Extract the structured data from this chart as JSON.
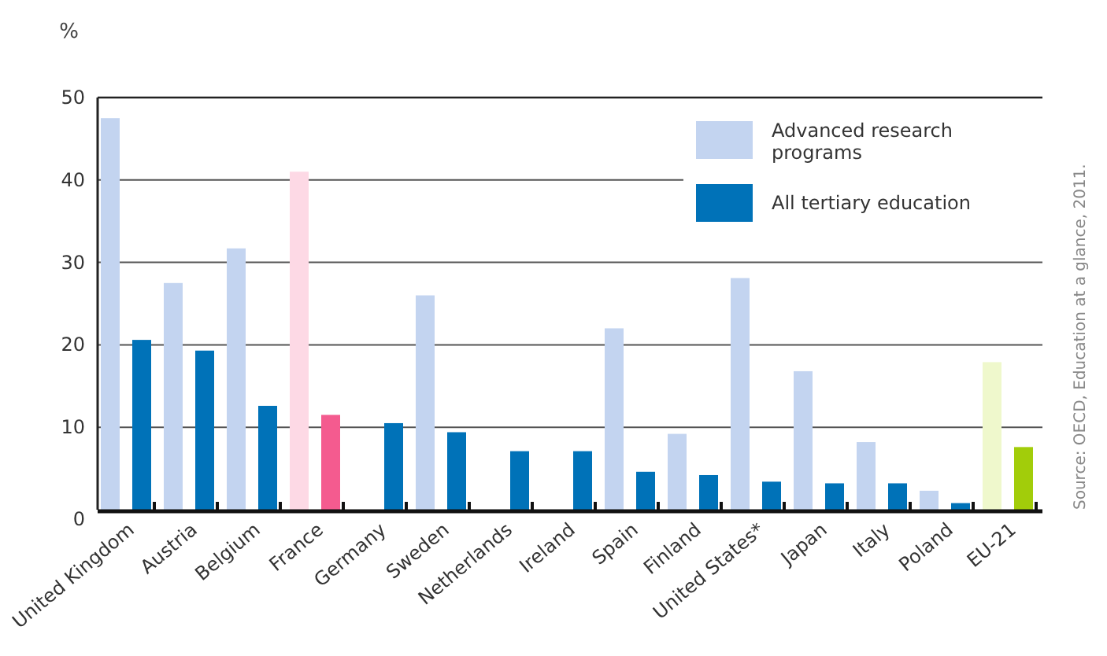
{
  "chart_data": {
    "type": "bar",
    "ylabel": "%",
    "categories": [
      "United Kingdom",
      "Austria",
      "Belgium",
      "France",
      "Germany",
      "Sweden",
      "Netherlands",
      "Ireland",
      "Spain",
      "Finland",
      "United States*",
      "Japan",
      "Italy",
      "Poland",
      "EU-21"
    ],
    "series": [
      {
        "name": "Advanced research programs",
        "color": "#c3d4f0",
        "colors": [
          "#c3d4f0",
          "#c3d4f0",
          "#c3d4f0",
          "#fdd9e5",
          "#c3d4f0",
          "#c3d4f0",
          "#c3d4f0",
          "#c3d4f0",
          "#c3d4f0",
          "#c3d4f0",
          "#c3d4f0",
          "#c3d4f0",
          "#c3d4f0",
          "#c3d4f0",
          "#eff8cc"
        ],
        "values": [
          47.5,
          27.5,
          31.7,
          41.0,
          null,
          26.0,
          null,
          null,
          22.0,
          9.2,
          28.1,
          16.8,
          8.2,
          2.3,
          17.9
        ]
      },
      {
        "name": "All tertiary education",
        "color": "#0072b8",
        "colors": [
          "#0072b8",
          "#0072b8",
          "#0072b8",
          "#f45b8f",
          "#0072b8",
          "#0072b8",
          "#0072b8",
          "#0072b8",
          "#0072b8",
          "#0072b8",
          "#0072b8",
          "#0072b8",
          "#0072b8",
          "#0072b8",
          "#a2cd0a"
        ],
        "values": [
          20.6,
          19.3,
          12.6,
          11.5,
          10.5,
          9.4,
          7.1,
          7.1,
          4.6,
          4.2,
          3.4,
          3.2,
          3.2,
          0.8,
          7.6
        ]
      }
    ],
    "ylim": [
      0,
      50
    ],
    "yticks": [
      0,
      10,
      20,
      30,
      40,
      50
    ],
    "grid": "y",
    "legend": "top right",
    "annotations": [
      "Source: OECD, Education at a glance, 2011."
    ]
  }
}
